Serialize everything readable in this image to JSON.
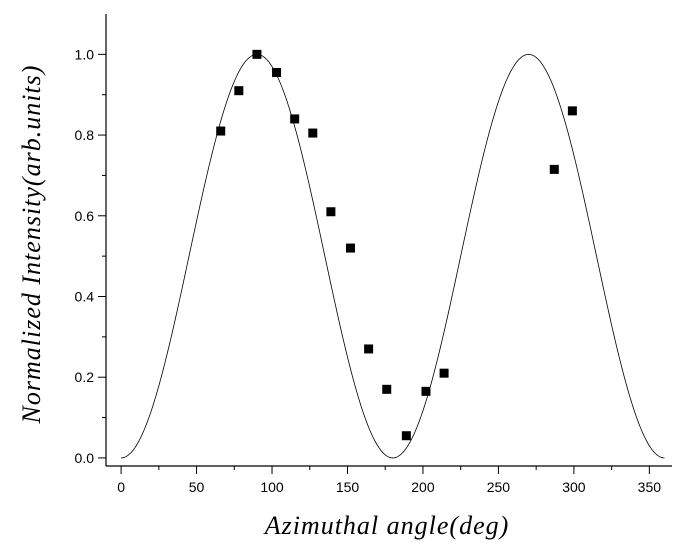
{
  "chart_data": {
    "type": "scatter",
    "xlabel": "Azimuthal angle(deg)",
    "ylabel": "Normalized Intensity(arb.units)",
    "xlim": [
      -10,
      365
    ],
    "ylim": [
      -0.02,
      1.1
    ],
    "x_ticks": [
      0,
      50,
      100,
      150,
      200,
      250,
      300,
      350
    ],
    "y_ticks": [
      0.0,
      0.2,
      0.4,
      0.6,
      0.8,
      1.0
    ],
    "x_tick_labels": [
      "0",
      "50",
      "100",
      "150",
      "200",
      "250",
      "300",
      "350"
    ],
    "y_tick_labels": [
      "0.0",
      "0.2",
      "0.4",
      "0.6",
      "0.8",
      "1.0"
    ],
    "series": [
      {
        "style": "square-markers",
        "x": [
          66,
          78,
          90,
          103,
          115,
          127,
          139,
          152,
          164,
          176,
          189,
          202,
          214,
          287,
          299
        ],
        "y": [
          0.81,
          0.91,
          1.0,
          0.955,
          0.84,
          0.805,
          0.61,
          0.52,
          0.27,
          0.17,
          0.055,
          0.165,
          0.21,
          0.715,
          0.86
        ]
      },
      {
        "style": "thin-line",
        "function": "sin^2(x)",
        "x_range": [
          0,
          360
        ]
      }
    ],
    "colors": {
      "line": "#000000",
      "markers": "#000000",
      "axes": "#000000"
    },
    "grid": false,
    "legend": false
  }
}
